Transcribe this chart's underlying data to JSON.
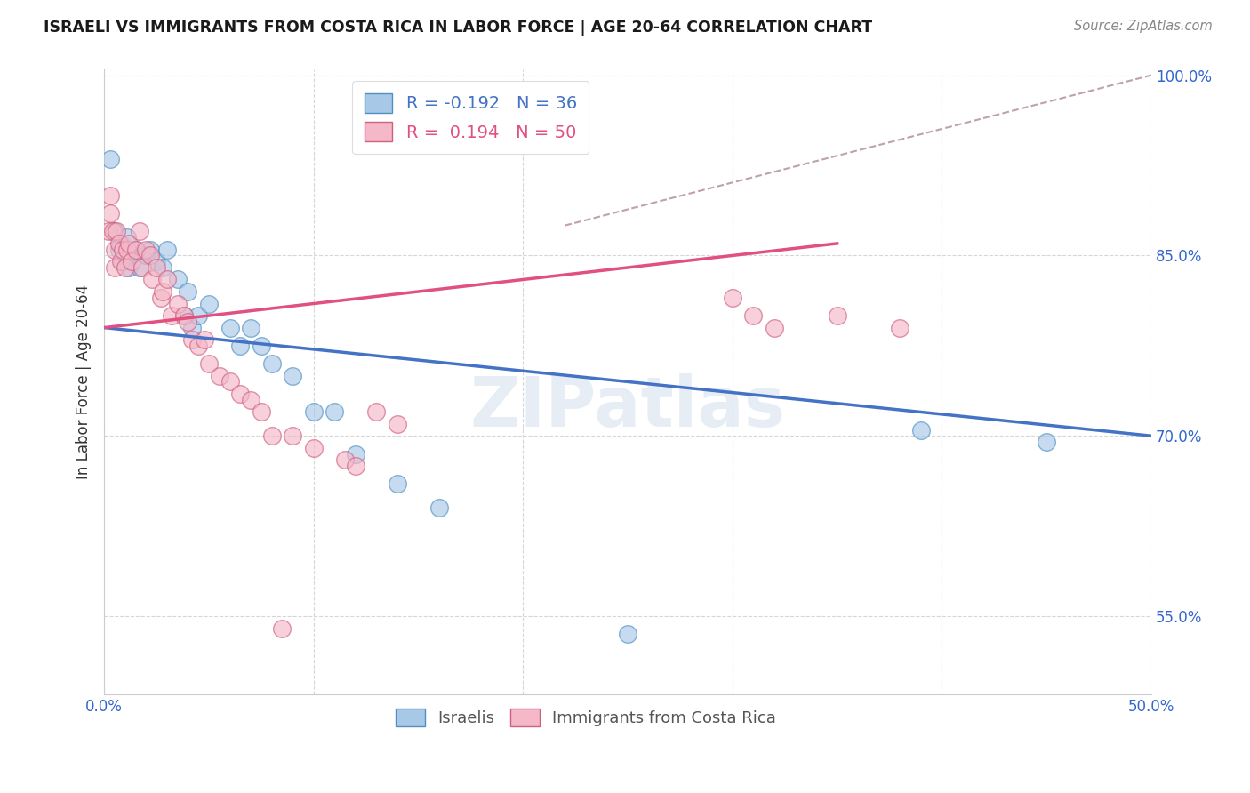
{
  "title": "ISRAELI VS IMMIGRANTS FROM COSTA RICA IN LABOR FORCE | AGE 20-64 CORRELATION CHART",
  "source_text": "Source: ZipAtlas.com",
  "ylabel": "In Labor Force | Age 20-64",
  "xmin": 0.0,
  "xmax": 0.5,
  "ymin": 0.485,
  "ymax": 1.005,
  "yticks": [
    0.55,
    0.7,
    0.85,
    1.0
  ],
  "ytick_labels": [
    "55.0%",
    "70.0%",
    "85.0%",
    "100.0%"
  ],
  "xticks": [
    0.0,
    0.1,
    0.2,
    0.3,
    0.4,
    0.5
  ],
  "xtick_labels": [
    "0.0%",
    "",
    "",
    "",
    "",
    "50.0%"
  ],
  "blue_color": "#a8c8e8",
  "pink_color": "#f4b8c8",
  "blue_edge_color": "#5090c0",
  "pink_edge_color": "#d06080",
  "blue_line_color": "#4472c4",
  "pink_line_color": "#e05080",
  "blue_scatter": [
    [
      0.003,
      0.93
    ],
    [
      0.005,
      0.87
    ],
    [
      0.007,
      0.855
    ],
    [
      0.008,
      0.86
    ],
    [
      0.009,
      0.845
    ],
    [
      0.01,
      0.85
    ],
    [
      0.011,
      0.865
    ],
    [
      0.012,
      0.84
    ],
    [
      0.013,
      0.85
    ],
    [
      0.015,
      0.855
    ],
    [
      0.017,
      0.84
    ],
    [
      0.02,
      0.85
    ],
    [
      0.022,
      0.855
    ],
    [
      0.025,
      0.845
    ],
    [
      0.028,
      0.84
    ],
    [
      0.03,
      0.855
    ],
    [
      0.035,
      0.83
    ],
    [
      0.038,
      0.8
    ],
    [
      0.04,
      0.82
    ],
    [
      0.042,
      0.79
    ],
    [
      0.045,
      0.8
    ],
    [
      0.05,
      0.81
    ],
    [
      0.06,
      0.79
    ],
    [
      0.065,
      0.775
    ],
    [
      0.07,
      0.79
    ],
    [
      0.075,
      0.775
    ],
    [
      0.08,
      0.76
    ],
    [
      0.09,
      0.75
    ],
    [
      0.1,
      0.72
    ],
    [
      0.11,
      0.72
    ],
    [
      0.12,
      0.685
    ],
    [
      0.14,
      0.66
    ],
    [
      0.16,
      0.64
    ],
    [
      0.25,
      0.535
    ],
    [
      0.39,
      0.705
    ],
    [
      0.45,
      0.695
    ]
  ],
  "pink_scatter": [
    [
      0.002,
      0.87
    ],
    [
      0.003,
      0.885
    ],
    [
      0.003,
      0.9
    ],
    [
      0.004,
      0.87
    ],
    [
      0.005,
      0.855
    ],
    [
      0.005,
      0.84
    ],
    [
      0.006,
      0.87
    ],
    [
      0.007,
      0.86
    ],
    [
      0.008,
      0.845
    ],
    [
      0.009,
      0.855
    ],
    [
      0.01,
      0.84
    ],
    [
      0.011,
      0.855
    ],
    [
      0.012,
      0.86
    ],
    [
      0.013,
      0.845
    ],
    [
      0.015,
      0.855
    ],
    [
      0.017,
      0.87
    ],
    [
      0.018,
      0.84
    ],
    [
      0.02,
      0.855
    ],
    [
      0.022,
      0.85
    ],
    [
      0.023,
      0.83
    ],
    [
      0.025,
      0.84
    ],
    [
      0.027,
      0.815
    ],
    [
      0.028,
      0.82
    ],
    [
      0.03,
      0.83
    ],
    [
      0.032,
      0.8
    ],
    [
      0.035,
      0.81
    ],
    [
      0.038,
      0.8
    ],
    [
      0.04,
      0.795
    ],
    [
      0.042,
      0.78
    ],
    [
      0.045,
      0.775
    ],
    [
      0.048,
      0.78
    ],
    [
      0.05,
      0.76
    ],
    [
      0.055,
      0.75
    ],
    [
      0.06,
      0.745
    ],
    [
      0.065,
      0.735
    ],
    [
      0.07,
      0.73
    ],
    [
      0.075,
      0.72
    ],
    [
      0.08,
      0.7
    ],
    [
      0.085,
      0.54
    ],
    [
      0.09,
      0.7
    ],
    [
      0.1,
      0.69
    ],
    [
      0.115,
      0.68
    ],
    [
      0.12,
      0.675
    ],
    [
      0.13,
      0.72
    ],
    [
      0.14,
      0.71
    ],
    [
      0.3,
      0.815
    ],
    [
      0.31,
      0.8
    ],
    [
      0.32,
      0.79
    ],
    [
      0.35,
      0.8
    ],
    [
      0.38,
      0.79
    ]
  ],
  "blue_trend_x": [
    0.0,
    0.5
  ],
  "blue_trend_y": [
    0.79,
    0.7
  ],
  "pink_trend_x": [
    0.0,
    0.35
  ],
  "pink_trend_y": [
    0.79,
    0.86
  ],
  "dashed_trend_x": [
    0.22,
    0.5
  ],
  "dashed_trend_y": [
    0.875,
    1.0
  ],
  "watermark": "ZIPatlas",
  "watermark_color": "#c8d8e8",
  "background_color": "#ffffff"
}
